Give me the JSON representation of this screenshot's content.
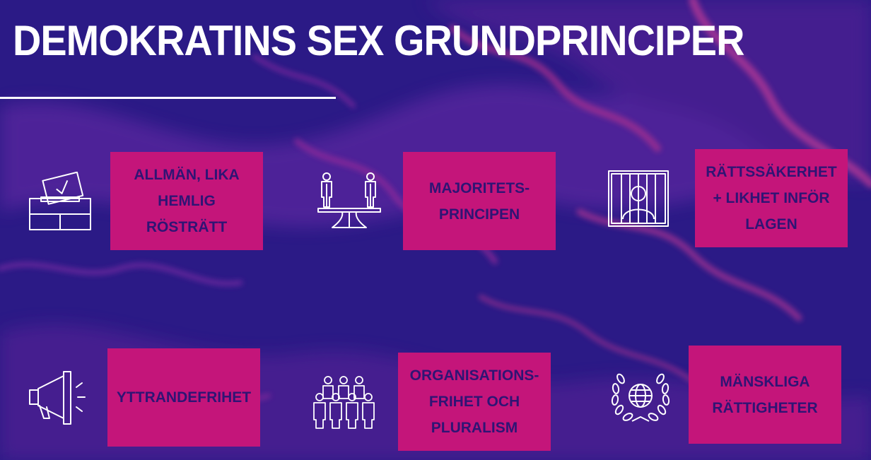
{
  "slide": {
    "title": "DEMOKRATINS SEX GRUNDPRINCIPER",
    "colors": {
      "background": "#2b1a86",
      "card": "#c4157a",
      "card_text": "#2f1474",
      "title_text": "#ffffff",
      "icon_stroke": "#ffffff"
    }
  },
  "principles": [
    {
      "label": "ALLMÄN, LIKA\nHEMLIG\nRÖSTRÄTT",
      "icon": "ballot-box-icon"
    },
    {
      "label": "MAJORITETS-\nPRINCIPEN",
      "icon": "seesaw-balance-icon"
    },
    {
      "label": "RÄTTSSÄKERHET\n+ LIKHET INFÖR\nLAGEN",
      "icon": "prisoner-bars-icon"
    },
    {
      "label": "YTTRANDEFRIHET",
      "icon": "megaphone-icon"
    },
    {
      "label": "ORGANISATIONS-\nFRIHET OCH\nPLURALISM",
      "icon": "people-group-icon"
    },
    {
      "label": "MÄNSKLIGA\nRÄTTIGHETER",
      "icon": "globe-laurel-icon"
    }
  ]
}
